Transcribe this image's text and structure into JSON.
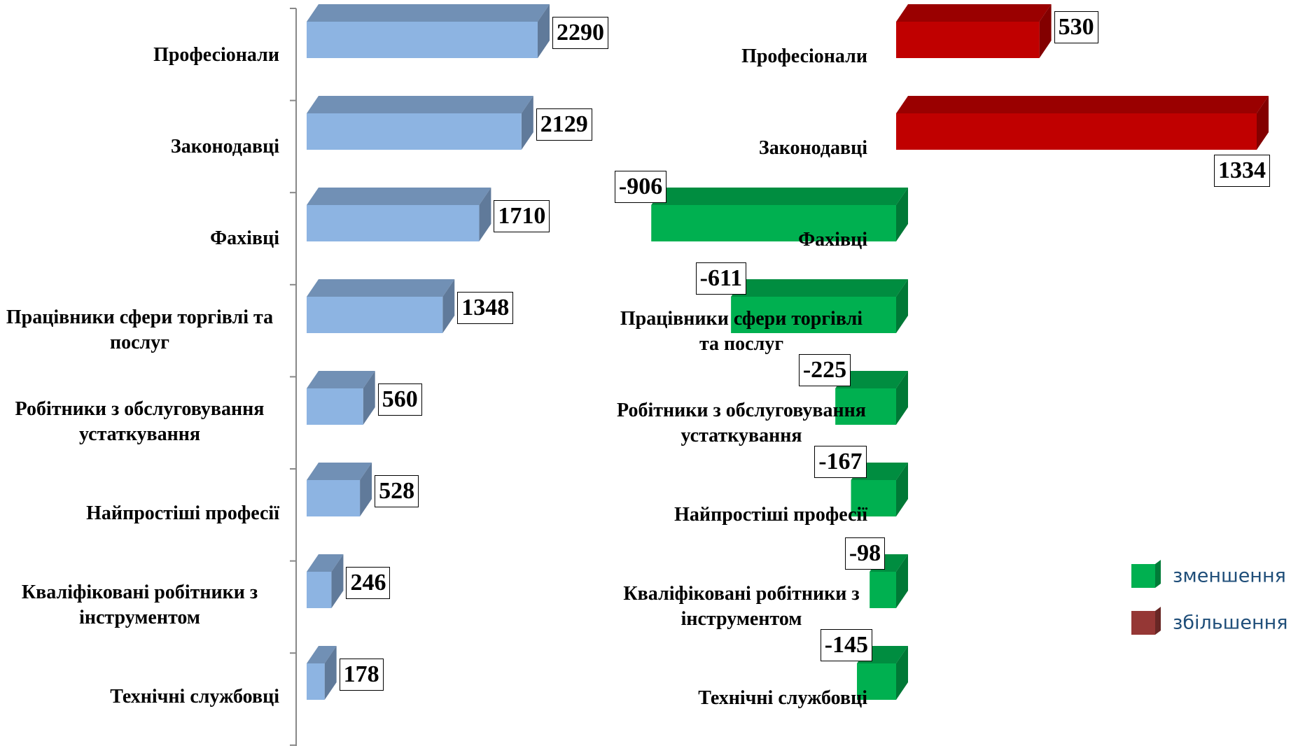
{
  "chart_data": [
    {
      "type": "bar3d",
      "categories": [
        "Професіонали",
        "Законодавці",
        "Фахівці",
        "Працівники сфери торгівлі та послуг",
        "Робітники з обслуговування устаткування",
        "Найпростіші професії",
        "Кваліфіковані робітники з інструментом",
        "Технічні службовці"
      ],
      "values": [
        2290,
        2129,
        1710,
        1348,
        560,
        528,
        246,
        178
      ],
      "color": "#8db4e2"
    },
    {
      "type": "diverging3d",
      "categories": [
        "Професіонали",
        "Законодавці",
        "Фахівці",
        "Працівники сфери торгівлі та послуг",
        "Робітники з обслуговування устаткування",
        "Найпростіші професії",
        "Кваліфіковані робітники з інструментом",
        "Технічні службовці"
      ],
      "series": [
        {
          "name": "зменшення",
          "color": "#00b050",
          "values": [
            null,
            null,
            -906,
            -611,
            -225,
            -167,
            -98,
            -145
          ]
        },
        {
          "name": "збільшення",
          "color": "#c00000",
          "values": [
            530,
            1334,
            null,
            null,
            null,
            null,
            null,
            null
          ]
        }
      ],
      "legend": "right"
    }
  ]
}
